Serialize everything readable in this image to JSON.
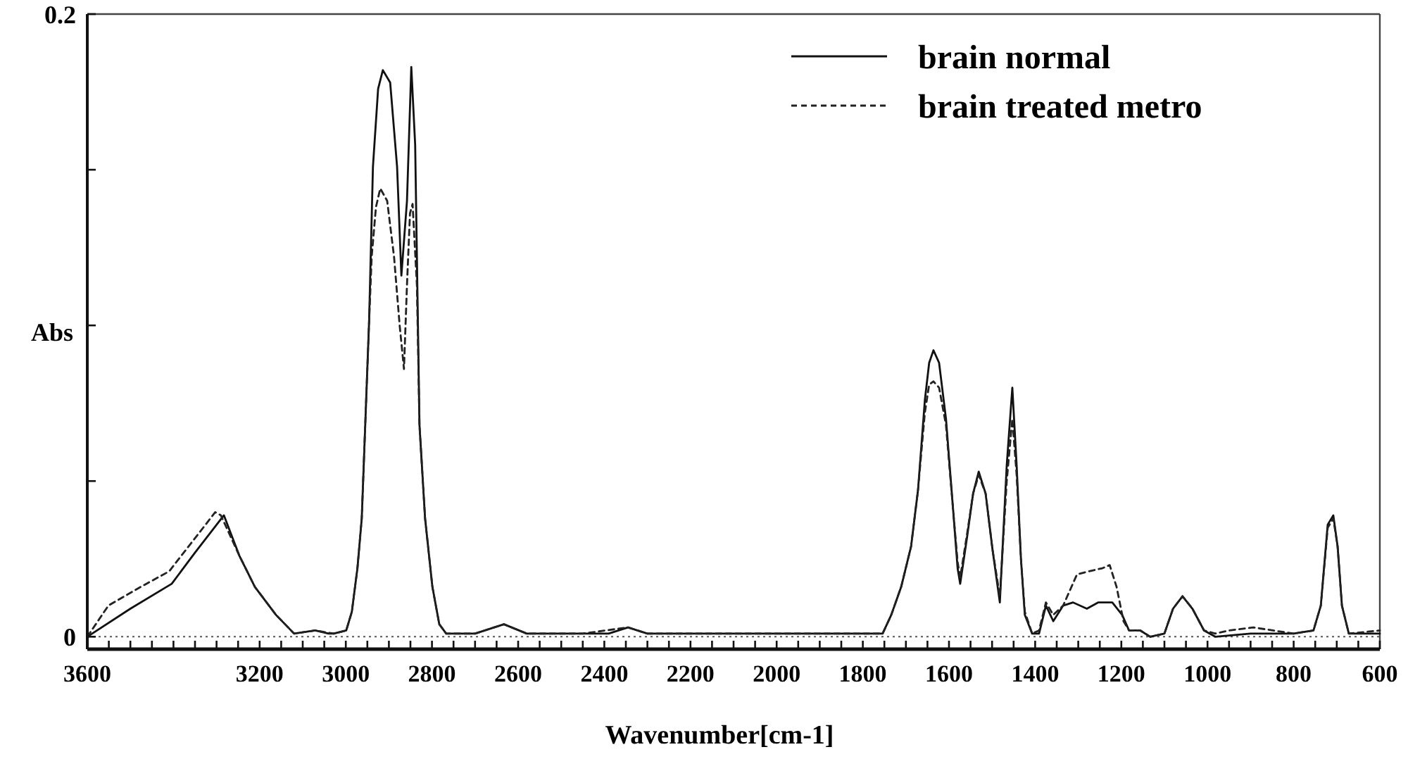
{
  "chart_data": {
    "type": "line",
    "xlabel": "Wavenumber[cm-1]",
    "ylabel": "Abs",
    "legend": "top right",
    "xlim": [
      3600,
      600
    ],
    "ylim": [
      -0.004,
      0.2
    ],
    "xticks": [
      3600,
      {
        "value": 3550,
        "label": null
      },
      {
        "value": 3500,
        "label": null
      },
      {
        "value": 3450,
        "label": null
      },
      {
        "value": 3400,
        "label": null
      },
      {
        "value": 3350,
        "label": null
      },
      {
        "value": 3300,
        "label": null
      },
      {
        "value": 3250,
        "label": null
      },
      3200,
      {
        "value": 3150,
        "label": null
      },
      {
        "value": 3100,
        "label": null
      },
      {
        "value": 3050,
        "label": null
      },
      3000,
      {
        "value": 2950,
        "label": null
      },
      {
        "value": 2900,
        "label": null
      },
      {
        "value": 2850,
        "label": null
      },
      2800,
      {
        "value": 2750,
        "label": null
      },
      {
        "value": 2700,
        "label": null
      },
      {
        "value": 2650,
        "label": null
      },
      2600,
      {
        "value": 2550,
        "label": null
      },
      {
        "value": 2500,
        "label": null
      },
      {
        "value": 2450,
        "label": null
      },
      2400,
      {
        "value": 2350,
        "label": null
      },
      {
        "value": 2300,
        "label": null
      },
      {
        "value": 2250,
        "label": null
      },
      2200,
      {
        "value": 2150,
        "label": null
      },
      {
        "value": 2100,
        "label": null
      },
      {
        "value": 2050,
        "label": null
      },
      2000,
      {
        "value": 1950,
        "label": null
      },
      {
        "value": 1900,
        "label": null
      },
      {
        "value": 1850,
        "label": null
      },
      1800,
      {
        "value": 1750,
        "label": null
      },
      {
        "value": 1700,
        "label": null
      },
      {
        "value": 1650,
        "label": null
      },
      1600,
      {
        "value": 1550,
        "label": null
      },
      {
        "value": 1500,
        "label": null
      },
      {
        "value": 1450,
        "label": null
      },
      1400,
      {
        "value": 1350,
        "label": null
      },
      {
        "value": 1300,
        "label": null
      },
      {
        "value": 1250,
        "label": null
      },
      1200,
      {
        "value": 1150,
        "label": null
      },
      {
        "value": 1100,
        "label": null
      },
      {
        "value": 1050,
        "label": null
      },
      1000,
      {
        "value": 950,
        "label": null
      },
      {
        "value": 900,
        "label": null
      },
      {
        "value": 850,
        "label": null
      },
      800,
      {
        "value": 750,
        "label": null
      },
      {
        "value": 700,
        "label": null
      },
      {
        "value": 650,
        "label": null
      },
      600
    ],
    "yticks": [
      {
        "value": 0.2,
        "label": "0.2"
      },
      {
        "value": 0.15,
        "label": null
      },
      {
        "value": 0.1,
        "label": null
      },
      {
        "value": 0.05,
        "label": null
      },
      0
    ],
    "ref_lines": [
      {
        "axis": "y",
        "value": 0,
        "line_style": "dotted",
        "color": "#555555"
      }
    ],
    "series": [
      {
        "name": "brain normal",
        "color": "#111111",
        "line_style": "solid",
        "x": [
          3600,
          3500,
          3404,
          3350,
          3283,
          3247,
          3211,
          3162,
          3120,
          3071,
          3040,
          3028,
          2999,
          2986,
          2973,
          2963,
          2946,
          2937,
          2925,
          2914,
          2897,
          2881,
          2871,
          2858,
          2848,
          2839,
          2829,
          2816,
          2799,
          2783,
          2767,
          2700,
          2633,
          2580,
          2450,
          2390,
          2345,
          2300,
          2000,
          1907,
          1754,
          1734,
          1711,
          1688,
          1672,
          1656,
          1646,
          1636,
          1623,
          1607,
          1590,
          1580,
          1574,
          1558,
          1544,
          1531,
          1515,
          1499,
          1482,
          1466,
          1453,
          1443,
          1433,
          1424,
          1407,
          1391,
          1375,
          1358,
          1335,
          1312,
          1280,
          1254,
          1221,
          1198,
          1182,
          1156,
          1133,
          1100,
          1080,
          1058,
          1035,
          1008,
          982,
          900,
          800,
          754,
          737,
          721,
          708,
          698,
          688,
          672,
          600
        ],
        "values": [
          0,
          0.009,
          0.017,
          0.027,
          0.039,
          0.026,
          0.016,
          0.007,
          0.001,
          0.002,
          0.001,
          0.001,
          0.002,
          0.008,
          0.022,
          0.038,
          0.101,
          0.151,
          0.176,
          0.182,
          0.178,
          0.151,
          0.116,
          0.14,
          0.183,
          0.158,
          0.068,
          0.038,
          0.016,
          0.004,
          0.001,
          0.001,
          0.004,
          0.001,
          0.001,
          0.001,
          0.003,
          0.001,
          0.001,
          0.001,
          0.001,
          0.007,
          0.016,
          0.029,
          0.047,
          0.076,
          0.088,
          0.092,
          0.088,
          0.07,
          0.04,
          0.022,
          0.017,
          0.032,
          0.046,
          0.053,
          0.046,
          0.028,
          0.011,
          0.055,
          0.08,
          0.055,
          0.025,
          0.007,
          0.001,
          0.001,
          0.01,
          0.005,
          0.01,
          0.011,
          0.009,
          0.011,
          0.011,
          0.007,
          0.002,
          0.002,
          0,
          0.001,
          0.009,
          0.013,
          0.009,
          0.002,
          0,
          0.001,
          0.001,
          0.002,
          0.01,
          0.036,
          0.039,
          0.029,
          0.01,
          0.001,
          0.001
        ]
      },
      {
        "name": "brain treated metro",
        "color": "#222222",
        "line_style": "dashed",
        "x": [
          3600,
          3551,
          3476,
          3410,
          3303,
          3290,
          3247,
          3211,
          3162,
          3120,
          3071,
          3028,
          2999,
          2986,
          2973,
          2963,
          2946,
          2940,
          2930,
          2920,
          2904,
          2888,
          2875,
          2865,
          2858,
          2851,
          2845,
          2835,
          2829,
          2816,
          2799,
          2783,
          2767,
          2700,
          2633,
          2580,
          2450,
          2345,
          2300,
          2000,
          1907,
          1754,
          1734,
          1711,
          1688,
          1672,
          1656,
          1646,
          1636,
          1623,
          1607,
          1590,
          1580,
          1574,
          1558,
          1544,
          1531,
          1515,
          1499,
          1482,
          1466,
          1453,
          1443,
          1433,
          1424,
          1407,
          1391,
          1375,
          1358,
          1335,
          1303,
          1276,
          1244,
          1227,
          1211,
          1195,
          1182,
          1156,
          1133,
          1100,
          1080,
          1058,
          1035,
          1008,
          982,
          950,
          894,
          800,
          754,
          737,
          721,
          708,
          698,
          688,
          672,
          600
        ],
        "values": [
          0,
          0.01,
          0.016,
          0.021,
          0.04,
          0.039,
          0.026,
          0.016,
          0.007,
          0.001,
          0.002,
          0.001,
          0.002,
          0.008,
          0.022,
          0.038,
          0.101,
          0.122,
          0.138,
          0.144,
          0.14,
          0.122,
          0.1,
          0.086,
          0.113,
          0.136,
          0.139,
          0.113,
          0.068,
          0.038,
          0.016,
          0.004,
          0.001,
          0.001,
          0.004,
          0.001,
          0.001,
          0.003,
          0.001,
          0.001,
          0.001,
          0.001,
          0.007,
          0.016,
          0.029,
          0.047,
          0.072,
          0.081,
          0.082,
          0.08,
          0.068,
          0.04,
          0.024,
          0.019,
          0.033,
          0.046,
          0.052,
          0.046,
          0.028,
          0.013,
          0.05,
          0.07,
          0.052,
          0.025,
          0.008,
          0.001,
          0.002,
          0.011,
          0.007,
          0.01,
          0.02,
          0.021,
          0.022,
          0.023,
          0.016,
          0.005,
          0.002,
          0.002,
          0,
          0.001,
          0.009,
          0.013,
          0.009,
          0.002,
          0.001,
          0.002,
          0.003,
          0.001,
          0.002,
          0.01,
          0.035,
          0.038,
          0.029,
          0.01,
          0.001,
          0.002
        ]
      }
    ]
  }
}
